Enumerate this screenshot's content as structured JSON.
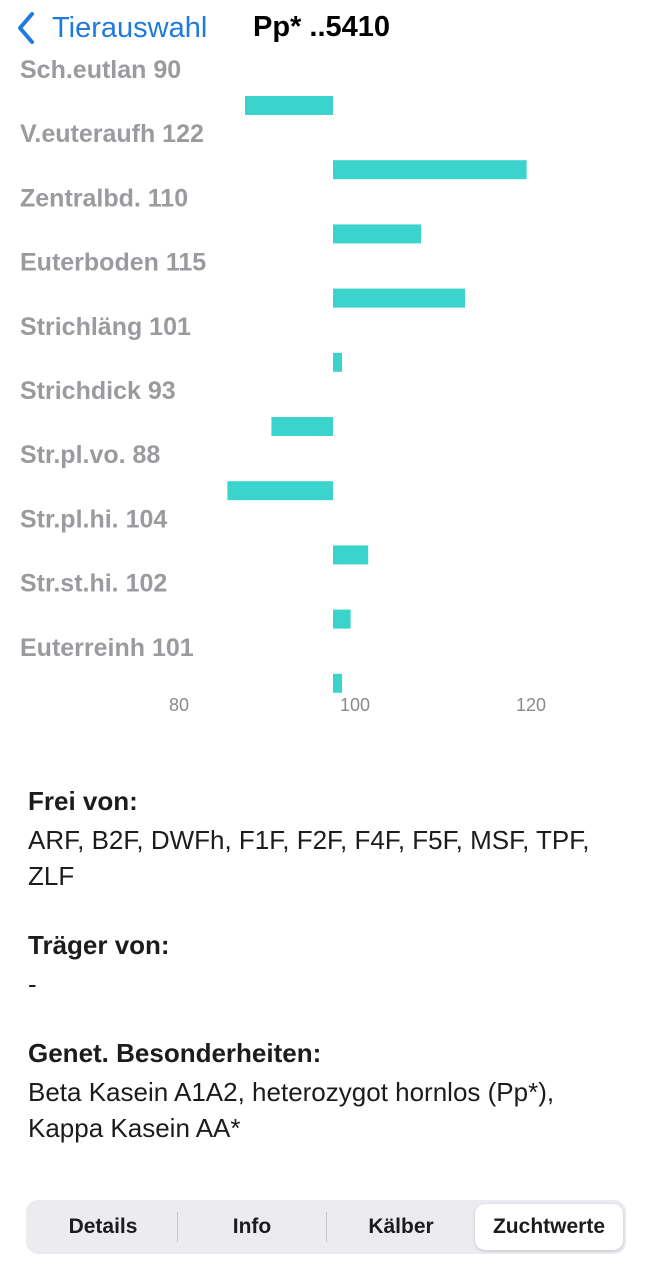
{
  "nav": {
    "back_label": "Tierauswahl",
    "title": "Pp* ..5410"
  },
  "chart_data": {
    "type": "bar",
    "orientation": "horizontal",
    "baseline": 100,
    "xlim": [
      70,
      135
    ],
    "x_ticks": [
      80,
      100,
      120
    ],
    "color": "#3bd4cc",
    "categories": [
      "Sch.eutlan 90",
      "V.euteraufh 122",
      "Zentralbd. 110",
      "Euterboden 115",
      "Strichläng 101",
      "Strichdick 93",
      "Str.pl.vo. 88",
      "Str.pl.hi. 104",
      "Str.st.hi. 102",
      "Euterreinh 101"
    ],
    "values": [
      90,
      122,
      110,
      115,
      101,
      93,
      88,
      104,
      102,
      101
    ]
  },
  "sections": {
    "frei_title": "Frei von:",
    "frei_text": "ARF, B2F, DWFh, F1F, F2F, F4F, F5F, MSF, TPF, ZLF",
    "traeger_title": "Träger von:",
    "traeger_text": "-",
    "genet_title": "Genet. Besonderheiten:",
    "genet_text": "Beta Kasein A1A2, heterozygot hornlos (Pp*), Kappa Kasein AA*"
  },
  "tabs": [
    {
      "label": "Details",
      "active": false
    },
    {
      "label": "Info",
      "active": false
    },
    {
      "label": "Kälber",
      "active": false
    },
    {
      "label": "Zuchtwerte",
      "active": true
    }
  ]
}
